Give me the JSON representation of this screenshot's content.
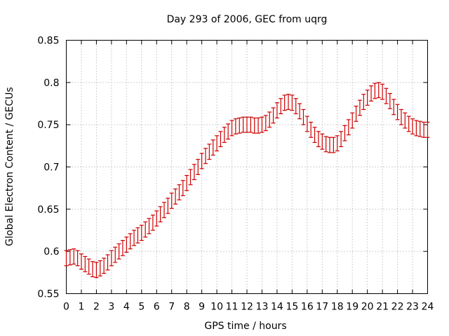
{
  "chart_data": {
    "type": "line",
    "title": "Day 293 of 2006, GEC from uqrg",
    "xlabel": "GPS time / hours",
    "ylabel": "Global Electron Content / GECUs",
    "xlim": [
      0,
      24
    ],
    "ylim": [
      0.55,
      0.85
    ],
    "xticks": [
      "0",
      "1",
      "2",
      "3",
      "4",
      "5",
      "6",
      "7",
      "8",
      "9",
      "10",
      "11",
      "12",
      "13",
      "14",
      "15",
      "16",
      "17",
      "18",
      "19",
      "20",
      "21",
      "22",
      "23",
      "24"
    ],
    "yticks": [
      "0.55",
      "0.6",
      "0.65",
      "0.7",
      "0.75",
      "0.8",
      "0.85"
    ],
    "grid": true,
    "error_bars": true,
    "series_color": "#cc0000",
    "series": [
      {
        "x": [
          0,
          0.25,
          0.5,
          0.75,
          1,
          1.25,
          1.5,
          1.75,
          2,
          2.25,
          2.5,
          2.75,
          3,
          3.25,
          3.5,
          3.75,
          4,
          4.25,
          4.5,
          4.75,
          5,
          5.25,
          5.5,
          5.75,
          6,
          6.25,
          6.5,
          6.75,
          7,
          7.25,
          7.5,
          7.75,
          8,
          8.25,
          8.5,
          8.75,
          9,
          9.25,
          9.5,
          9.75,
          10,
          10.25,
          10.5,
          10.75,
          11,
          11.25,
          11.5,
          11.75,
          12,
          12.25,
          12.5,
          12.75,
          13,
          13.25,
          13.5,
          13.75,
          14,
          14.25,
          14.5,
          14.75,
          15,
          15.25,
          15.5,
          15.75,
          16,
          16.25,
          16.5,
          16.75,
          17,
          17.25,
          17.5,
          17.75,
          18,
          18.25,
          18.5,
          18.75,
          19,
          19.25,
          19.5,
          19.75,
          20,
          20.25,
          20.5,
          20.75,
          21,
          21.25,
          21.5,
          21.75,
          22,
          22.25,
          22.5,
          22.75,
          23,
          23.25,
          23.5,
          23.75,
          24
        ],
        "y": [
          0.592,
          0.593,
          0.594,
          0.592,
          0.588,
          0.585,
          0.582,
          0.579,
          0.578,
          0.58,
          0.583,
          0.587,
          0.592,
          0.596,
          0.6,
          0.604,
          0.608,
          0.612,
          0.616,
          0.619,
          0.622,
          0.626,
          0.63,
          0.634,
          0.639,
          0.644,
          0.649,
          0.654,
          0.66,
          0.665,
          0.67,
          0.675,
          0.681,
          0.688,
          0.694,
          0.7,
          0.707,
          0.713,
          0.718,
          0.723,
          0.728,
          0.733,
          0.738,
          0.742,
          0.746,
          0.748,
          0.749,
          0.75,
          0.75,
          0.75,
          0.749,
          0.749,
          0.75,
          0.752,
          0.756,
          0.761,
          0.767,
          0.772,
          0.776,
          0.777,
          0.776,
          0.772,
          0.766,
          0.759,
          0.751,
          0.744,
          0.738,
          0.733,
          0.73,
          0.727,
          0.726,
          0.726,
          0.728,
          0.733,
          0.74,
          0.747,
          0.755,
          0.763,
          0.77,
          0.777,
          0.782,
          0.787,
          0.79,
          0.791,
          0.789,
          0.784,
          0.778,
          0.771,
          0.765,
          0.759,
          0.755,
          0.751,
          0.748,
          0.746,
          0.745,
          0.744,
          0.744
        ],
        "err": 0.009
      }
    ]
  }
}
